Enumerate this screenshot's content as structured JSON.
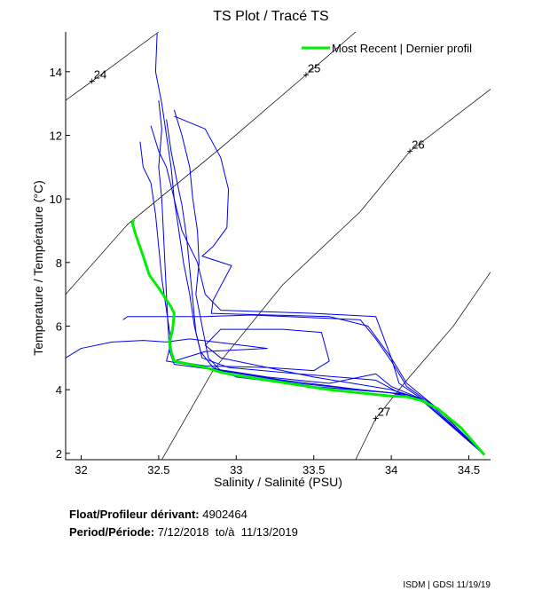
{
  "chart_data": {
    "type": "line",
    "title": "TS Plot / Tracé TS",
    "xlabel": "Salinity / Salinité (PSU)",
    "ylabel": "Temperature / Température (°C)",
    "xlim": [
      31.9,
      34.64
    ],
    "ylim": [
      1.8,
      15.25
    ],
    "xticks": [
      32,
      32.5,
      33,
      33.5,
      34,
      34.5
    ],
    "xtick_labels": [
      "32",
      "32.5",
      "33",
      "33.5",
      "34",
      "34.5"
    ],
    "yticks": [
      2,
      4,
      6,
      8,
      10,
      12,
      14
    ],
    "ytick_labels": [
      "2",
      "4",
      "6",
      "8",
      "10",
      "12",
      "14"
    ],
    "grid": false,
    "legend": {
      "label": "Most Recent | Dernier profil",
      "placement": "top-right",
      "color": "#00ee00"
    },
    "isopycnals": [
      {
        "label": "24",
        "label_at": [
          32.07,
          13.7
        ],
        "points": [
          [
            31.9,
            13.1
          ],
          [
            32.07,
            13.7
          ],
          [
            32.5,
            15.25
          ]
        ]
      },
      {
        "label": "25",
        "label_at": [
          33.45,
          13.9
        ],
        "points": [
          [
            31.9,
            7.0
          ],
          [
            32.3,
            9.2
          ],
          [
            32.9,
            11.6
          ],
          [
            33.45,
            13.9
          ],
          [
            33.77,
            15.25
          ]
        ]
      },
      {
        "label": "26",
        "label_at": [
          34.12,
          11.5
        ],
        "points": [
          [
            32.52,
            1.8
          ],
          [
            32.85,
            4.6
          ],
          [
            33.3,
            7.3
          ],
          [
            33.8,
            9.6
          ],
          [
            34.12,
            11.5
          ],
          [
            34.64,
            13.45
          ]
        ]
      },
      {
        "label": "27",
        "label_at": [
          33.9,
          3.1
        ],
        "points": [
          [
            33.77,
            1.8
          ],
          [
            33.9,
            3.1
          ],
          [
            34.1,
            4.3
          ],
          [
            34.4,
            6.0
          ],
          [
            34.64,
            7.7
          ]
        ]
      }
    ],
    "series": [
      {
        "name": "Most Recent | Dernier profil",
        "color": "#00ee00",
        "width": 3,
        "points": [
          [
            32.34,
            9.35
          ],
          [
            32.33,
            9.25
          ],
          [
            32.35,
            8.9
          ],
          [
            32.4,
            8.2
          ],
          [
            32.44,
            7.6
          ],
          [
            32.5,
            7.2
          ],
          [
            32.58,
            6.6
          ],
          [
            32.6,
            6.4
          ],
          [
            32.59,
            5.9
          ],
          [
            32.57,
            5.5
          ],
          [
            32.58,
            5.2
          ],
          [
            32.6,
            4.9
          ],
          [
            32.7,
            4.8
          ],
          [
            32.8,
            4.7
          ],
          [
            32.9,
            4.55
          ],
          [
            33.0,
            4.45
          ],
          [
            33.2,
            4.3
          ],
          [
            33.4,
            4.15
          ],
          [
            33.6,
            4.0
          ],
          [
            33.8,
            3.9
          ],
          [
            34.0,
            3.8
          ],
          [
            34.1,
            3.78
          ],
          [
            34.2,
            3.65
          ],
          [
            34.3,
            3.4
          ],
          [
            34.45,
            2.8
          ],
          [
            34.6,
            1.95
          ]
        ]
      },
      {
        "name": "profile",
        "color": "#0000ee",
        "width": 1,
        "points": [
          [
            32.49,
            15.2
          ],
          [
            32.48,
            14.0
          ],
          [
            32.52,
            13.0
          ],
          [
            32.55,
            12.0
          ],
          [
            32.58,
            11.0
          ],
          [
            32.6,
            10.0
          ],
          [
            32.63,
            9.0
          ],
          [
            32.66,
            8.0
          ],
          [
            32.7,
            7.0
          ],
          [
            32.73,
            6.0
          ],
          [
            32.77,
            5.2
          ],
          [
            32.85,
            4.7
          ],
          [
            33.0,
            4.4
          ],
          [
            33.5,
            4.1
          ],
          [
            34.0,
            3.9
          ],
          [
            34.2,
            3.7
          ],
          [
            34.6,
            1.95
          ]
        ]
      },
      {
        "name": "profile",
        "color": "#0000ee",
        "width": 1,
        "points": [
          [
            32.5,
            13.1
          ],
          [
            32.52,
            12.2
          ],
          [
            32.5,
            11.0
          ],
          [
            32.52,
            10.0
          ],
          [
            32.53,
            9.0
          ],
          [
            32.54,
            8.0
          ],
          [
            32.55,
            7.0
          ],
          [
            32.56,
            6.0
          ],
          [
            32.57,
            5.2
          ],
          [
            32.6,
            4.8
          ],
          [
            32.9,
            4.6
          ],
          [
            33.3,
            4.3
          ],
          [
            33.8,
            4.0
          ],
          [
            34.1,
            3.85
          ],
          [
            34.3,
            3.4
          ],
          [
            34.6,
            1.95
          ]
        ]
      },
      {
        "name": "profile",
        "color": "#0000ee",
        "width": 1,
        "points": [
          [
            32.6,
            12.8
          ],
          [
            32.65,
            12.0
          ],
          [
            32.7,
            11.0
          ],
          [
            32.72,
            10.0
          ],
          [
            32.75,
            9.0
          ],
          [
            32.76,
            8.0
          ],
          [
            32.74,
            7.0
          ],
          [
            32.78,
            6.0
          ],
          [
            32.82,
            5.0
          ],
          [
            32.9,
            4.6
          ],
          [
            33.4,
            4.2
          ],
          [
            34.0,
            3.9
          ],
          [
            34.2,
            3.65
          ],
          [
            34.6,
            1.95
          ]
        ]
      },
      {
        "name": "profile",
        "color": "#0000ee",
        "width": 1,
        "points": [
          [
            32.45,
            12.3
          ],
          [
            32.5,
            11.5
          ],
          [
            32.55,
            11.0
          ],
          [
            32.6,
            10.0
          ],
          [
            32.65,
            9.0
          ],
          [
            32.7,
            8.5
          ],
          [
            32.75,
            8.0
          ],
          [
            32.8,
            7.0
          ],
          [
            32.9,
            6.5
          ],
          [
            33.5,
            6.4
          ],
          [
            33.9,
            6.3
          ],
          [
            34.0,
            5.0
          ],
          [
            34.05,
            4.2
          ],
          [
            34.2,
            3.7
          ],
          [
            34.5,
            2.4
          ]
        ]
      },
      {
        "name": "profile",
        "color": "#0000ee",
        "width": 1,
        "points": [
          [
            32.6,
            12.6
          ],
          [
            32.8,
            12.2
          ],
          [
            32.9,
            11.3
          ],
          [
            32.95,
            10.3
          ],
          [
            32.94,
            9.1
          ],
          [
            32.85,
            8.5
          ],
          [
            32.78,
            8.2
          ],
          [
            32.97,
            7.9
          ],
          [
            32.85,
            6.8
          ],
          [
            32.84,
            6.4
          ],
          [
            33.6,
            6.3
          ],
          [
            33.85,
            6.0
          ],
          [
            34.0,
            5.0
          ],
          [
            34.1,
            4.2
          ],
          [
            34.3,
            3.4
          ],
          [
            34.6,
            1.95
          ]
        ]
      },
      {
        "name": "profile",
        "color": "#0000ee",
        "width": 1,
        "points": [
          [
            32.27,
            6.2
          ],
          [
            32.3,
            6.3
          ],
          [
            32.8,
            6.3
          ],
          [
            33.1,
            6.35
          ],
          [
            33.8,
            6.2
          ],
          [
            33.9,
            5.6
          ],
          [
            34.0,
            4.9
          ],
          [
            34.1,
            4.1
          ],
          [
            34.3,
            3.4
          ]
        ]
      },
      {
        "name": "profile",
        "color": "#0000ee",
        "width": 1,
        "points": [
          [
            31.9,
            5.0
          ],
          [
            32.0,
            5.3
          ],
          [
            32.2,
            5.5
          ],
          [
            32.4,
            5.55
          ],
          [
            32.55,
            5.5
          ],
          [
            32.7,
            5.6
          ],
          [
            33.2,
            5.3
          ],
          [
            32.8,
            5.2
          ],
          [
            32.6,
            4.9
          ],
          [
            32.8,
            4.75
          ],
          [
            33.2,
            4.7
          ],
          [
            33.5,
            4.6
          ],
          [
            33.6,
            4.9
          ],
          [
            33.55,
            5.8
          ],
          [
            33.3,
            5.9
          ],
          [
            32.9,
            5.9
          ],
          [
            32.8,
            5.4
          ],
          [
            32.9,
            5.0
          ],
          [
            33.5,
            4.4
          ],
          [
            34.0,
            4.0
          ],
          [
            34.2,
            3.7
          ]
        ]
      },
      {
        "name": "profile",
        "color": "#0000ee",
        "width": 1,
        "points": [
          [
            32.38,
            11.8
          ],
          [
            32.4,
            11.0
          ],
          [
            32.45,
            10.5
          ],
          [
            32.48,
            9.5
          ],
          [
            32.5,
            8.5
          ],
          [
            32.52,
            7.5
          ],
          [
            32.55,
            6.5
          ],
          [
            32.58,
            5.5
          ],
          [
            32.55,
            4.9
          ],
          [
            32.8,
            4.7
          ],
          [
            33.2,
            4.4
          ],
          [
            33.6,
            4.2
          ],
          [
            33.9,
            4.5
          ],
          [
            34.0,
            4.1
          ],
          [
            34.2,
            3.7
          ]
        ]
      },
      {
        "name": "profile",
        "color": "#0000ee",
        "width": 1,
        "points": [
          [
            32.55,
            12.5
          ],
          [
            32.58,
            11.5
          ],
          [
            32.62,
            10.5
          ],
          [
            32.65,
            9.8
          ],
          [
            32.68,
            8.8
          ],
          [
            32.7,
            7.8
          ],
          [
            32.72,
            6.8
          ],
          [
            32.74,
            5.8
          ],
          [
            32.78,
            5.0
          ],
          [
            32.95,
            4.7
          ],
          [
            33.4,
            4.5
          ],
          [
            33.9,
            4.3
          ],
          [
            34.05,
            3.9
          ],
          [
            34.25,
            3.55
          ],
          [
            34.6,
            1.95
          ]
        ]
      }
    ]
  },
  "info": {
    "float_label": "Float/Profileur dérivant:",
    "float_id": "4902464",
    "period_label": "Period/Période:",
    "period_start": "7/12/2018",
    "period_sep": "to/à",
    "period_end": "11/13/2019"
  },
  "footer": "ISDM | GDSI  11/19/19"
}
